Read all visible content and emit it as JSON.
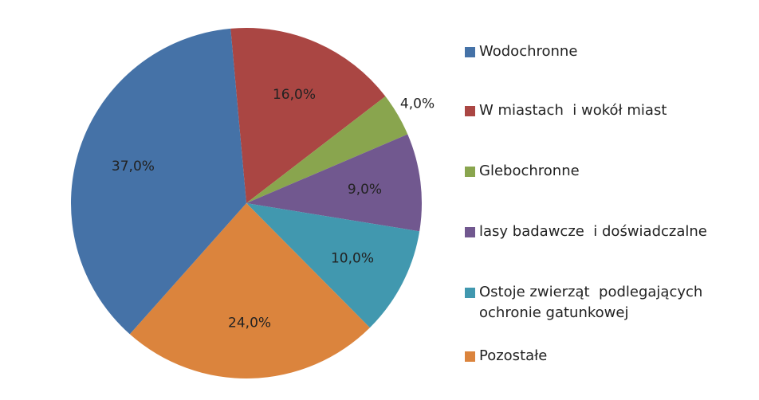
{
  "chart_data": {
    "type": "pie",
    "title": "",
    "slices": [
      {
        "name": "Wodochronne",
        "value": 37.0,
        "label": "37,0%",
        "color": "#4572a7"
      },
      {
        "name": "W miastach  i wokół miast",
        "value": 16.0,
        "label": "16,0%",
        "color": "#aa4643"
      },
      {
        "name": "Glebochronne",
        "value": 4.0,
        "label": "4,0%",
        "color": "#89a54e"
      },
      {
        "name": "lasy badawcze  i doświadczalne",
        "value": 9.0,
        "label": "9,0%",
        "color": "#71588f"
      },
      {
        "name": "Ostoje zwierząt  podlegających\nochronie gatunkowej",
        "value": 10.0,
        "label": "10,0%",
        "color": "#4198af"
      },
      {
        "name": "Pozostałe",
        "value": 24.0,
        "label": "24,0%",
        "color": "#db843d"
      }
    ],
    "legend_position": "right",
    "start_slice": "W miastach  i wokół miast",
    "direction": "clockwise"
  }
}
